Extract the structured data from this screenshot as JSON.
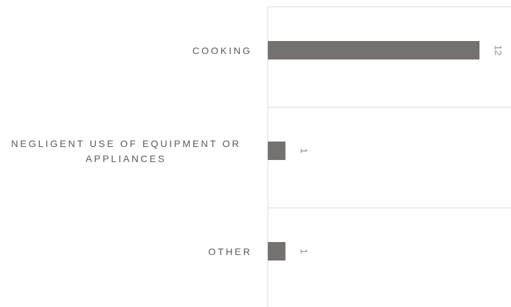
{
  "chart_data": {
    "type": "bar",
    "orientation": "horizontal",
    "categories": [
      "COOKING",
      "NEGLIGENT USE OF EQUIPMENT OR APPLIANCES",
      "OTHER"
    ],
    "values": [
      12,
      1,
      1
    ],
    "color": "#767171"
  }
}
